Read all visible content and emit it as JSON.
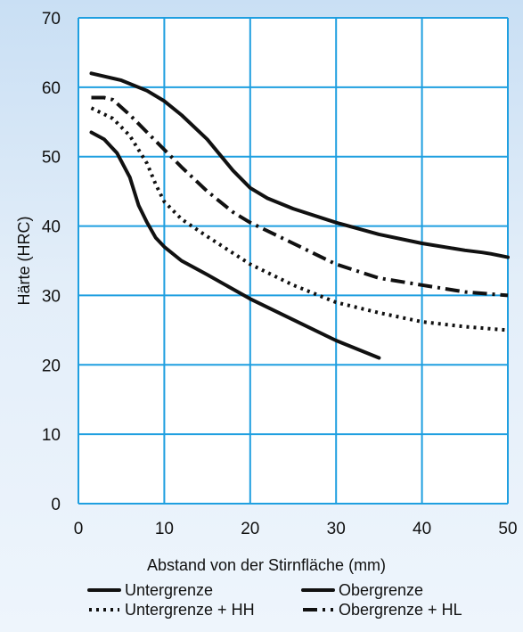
{
  "colors": {
    "plot_background": "#ffffff",
    "grid": "#1f9fe0",
    "line": "#111111"
  },
  "chart_data": {
    "type": "line",
    "title": "",
    "xlabel": "Abstand von der Stirnfläche (mm)",
    "ylabel": "Härte (HRC)",
    "xlim": [
      0,
      50
    ],
    "ylim": [
      0,
      70
    ],
    "xticks": [
      0,
      10,
      20,
      30,
      40,
      50
    ],
    "yticks": [
      0,
      10,
      20,
      30,
      40,
      50,
      60,
      70
    ],
    "grid": true,
    "legend_position": "bottom",
    "series": [
      {
        "name": "Untergrenze",
        "style": "solid",
        "x": [
          1.5,
          3,
          4.5,
          6,
          7,
          8,
          9,
          10,
          12,
          15,
          20,
          25,
          30,
          35
        ],
        "y": [
          53.5,
          52.5,
          50.5,
          47,
          43,
          40.5,
          38.3,
          37,
          35,
          33,
          29.5,
          26.5,
          23.5,
          21
        ]
      },
      {
        "name": "Obergrenze",
        "style": "solid",
        "x": [
          1.5,
          5,
          8,
          10,
          12,
          15,
          18,
          20,
          22,
          25,
          30,
          35,
          40,
          45,
          47,
          48,
          50
        ],
        "y": [
          62,
          61,
          59.5,
          58,
          56,
          52.5,
          48,
          45.5,
          44,
          42.5,
          40.5,
          38.8,
          37.5,
          36.5,
          36.2,
          36,
          35.5
        ]
      },
      {
        "name": "Untergrenze + HH",
        "style": "dotted",
        "x": [
          1.5,
          4,
          6,
          8,
          9,
          10,
          12,
          15,
          20,
          25,
          30,
          35,
          40,
          45,
          50
        ],
        "y": [
          57,
          55.5,
          53,
          49,
          46,
          43.5,
          41,
          38.5,
          34.5,
          31.5,
          29,
          27.5,
          26.2,
          25.5,
          25
        ]
      },
      {
        "name": "Obergrenze + HL",
        "style": "dashdot",
        "x": [
          1.5,
          3,
          4,
          6,
          8,
          10,
          12,
          15,
          18,
          20,
          25,
          30,
          35,
          40,
          45,
          50
        ],
        "y": [
          58.5,
          58.5,
          58.2,
          56,
          53.5,
          51,
          48.5,
          45,
          42,
          40.5,
          37.5,
          34.5,
          32.5,
          31.5,
          30.5,
          30
        ]
      }
    ]
  }
}
